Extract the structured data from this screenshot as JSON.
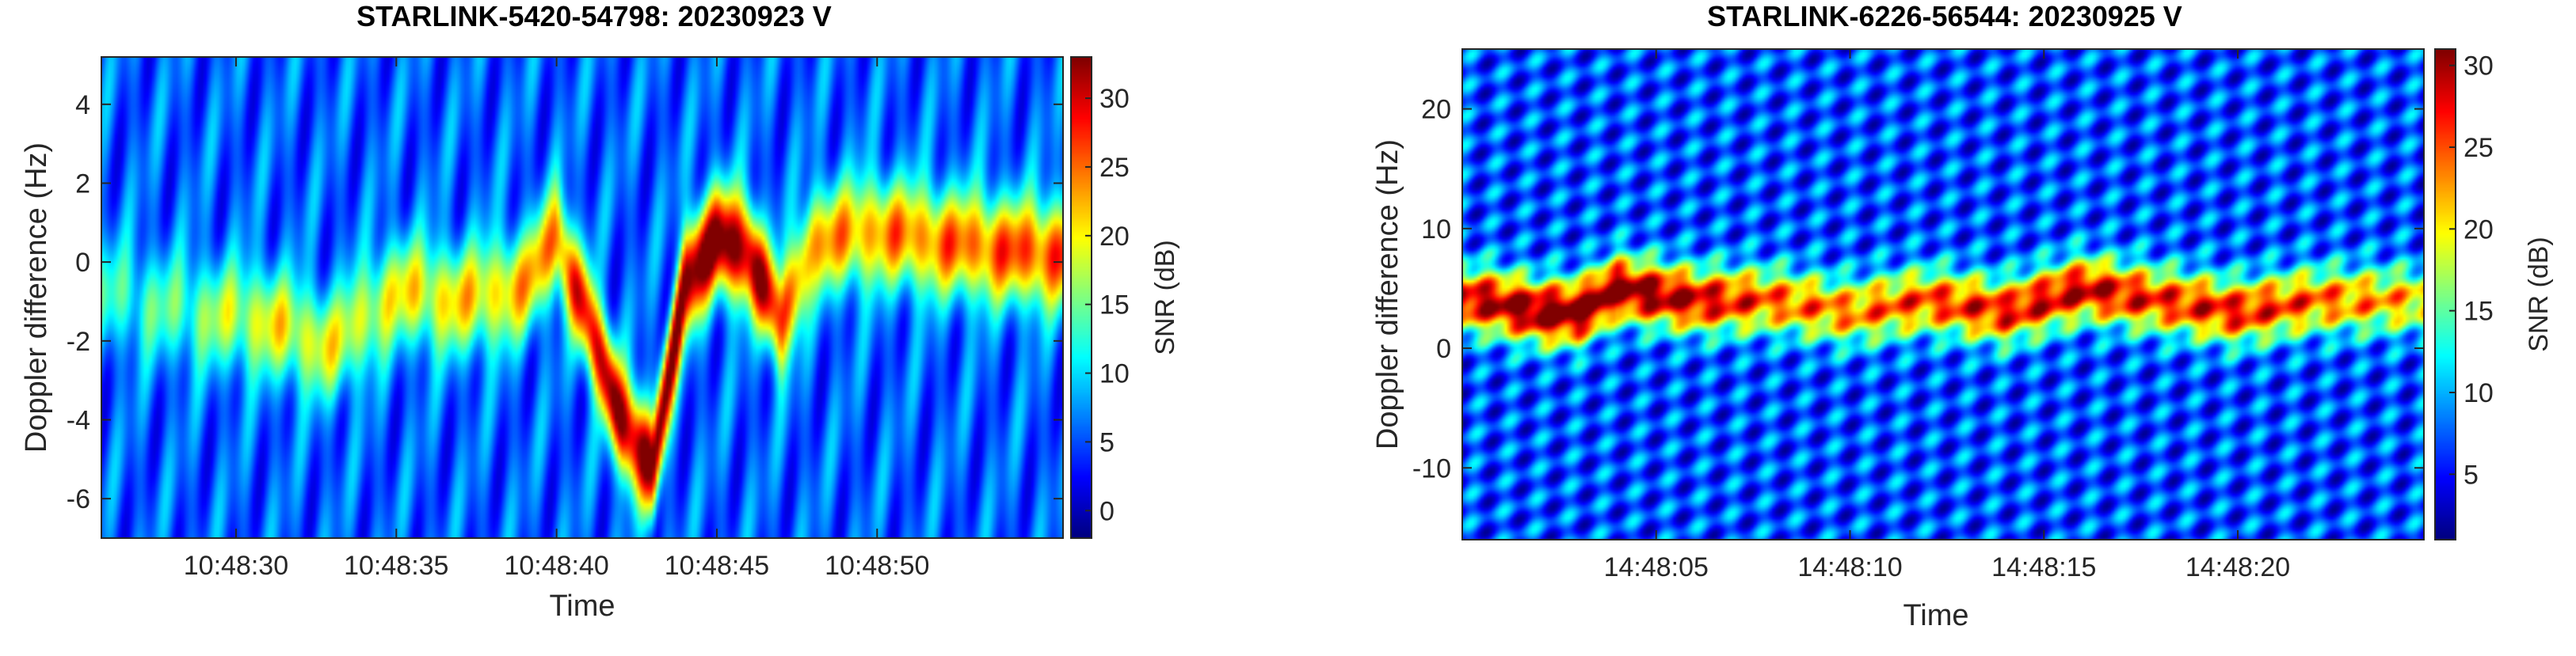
{
  "chart_data": [
    {
      "type": "heatmap",
      "title": "STARLINK-5420-54798: 20230923 V",
      "xlabel": "Time",
      "ylabel": "Doppler difference (Hz)",
      "xticks": [
        "10:48:30",
        "10:48:35",
        "10:48:40",
        "10:48:45",
        "10:48:50"
      ],
      "xlim": [
        "10:48:25.8",
        "10:48:55.8"
      ],
      "yticks": [
        4,
        2,
        0,
        -2,
        -4,
        -6
      ],
      "ylim": [
        -7,
        5.2
      ],
      "colorbar": {
        "label": "SNR (dB)",
        "ticks": [
          30,
          25,
          20,
          15,
          10,
          5,
          0
        ],
        "range": [
          -2,
          33
        ],
        "colormap": "jet"
      },
      "ridge": {
        "description": "Doppler track of peak SNR over time",
        "points": [
          {
            "t": "10:48:26",
            "doppler_hz": -0.8,
            "snr_db": 8
          },
          {
            "t": "10:48:28",
            "doppler_hz": -1.2,
            "snr_db": 9
          },
          {
            "t": "10:48:31",
            "doppler_hz": -1.5,
            "snr_db": 15
          },
          {
            "t": "10:48:33",
            "doppler_hz": -2.2,
            "snr_db": 14
          },
          {
            "t": "10:48:35",
            "doppler_hz": -0.7,
            "snr_db": 15
          },
          {
            "t": "10:48:37",
            "doppler_hz": -1.0,
            "snr_db": 16
          },
          {
            "t": "10:48:39",
            "doppler_hz": -0.6,
            "snr_db": 17
          },
          {
            "t": "10:48:40",
            "doppler_hz": 0.6,
            "snr_db": 20
          },
          {
            "t": "10:48:41",
            "doppler_hz": -1.5,
            "snr_db": 25
          },
          {
            "t": "10:48:42",
            "doppler_hz": -4.0,
            "snr_db": 29
          },
          {
            "t": "10:48:43",
            "doppler_hz": -5.2,
            "snr_db": 28
          },
          {
            "t": "10:48:44",
            "doppler_hz": -0.5,
            "snr_db": 30
          },
          {
            "t": "10:48:45",
            "doppler_hz": 0.6,
            "snr_db": 30
          },
          {
            "t": "10:48:46",
            "doppler_hz": 0.2,
            "snr_db": 29
          },
          {
            "t": "10:48:47",
            "doppler_hz": -1.5,
            "snr_db": 24
          },
          {
            "t": "10:48:48",
            "doppler_hz": 0.5,
            "snr_db": 18
          },
          {
            "t": "10:48:50",
            "doppler_hz": 0.8,
            "snr_db": 19
          },
          {
            "t": "10:48:52",
            "doppler_hz": 0.5,
            "snr_db": 20
          },
          {
            "t": "10:48:55",
            "doppler_hz": 0.2,
            "snr_db": 22
          }
        ]
      }
    },
    {
      "type": "heatmap",
      "title": "STARLINK-6226-56544: 20230925 V",
      "xlabel": "Time",
      "ylabel": "Doppler difference (Hz)",
      "xticks": [
        "14:48:05",
        "14:48:10",
        "14:48:15",
        "14:48:20"
      ],
      "xlim": [
        "14:48:00",
        "14:48:24.8"
      ],
      "yticks": [
        20,
        10,
        0,
        -10
      ],
      "ylim": [
        -16,
        25
      ],
      "colorbar": {
        "label": "SNR (dB)",
        "ticks": [
          30,
          25,
          20,
          15,
          10,
          5
        ],
        "range": [
          1,
          31
        ],
        "colormap": "jet"
      },
      "ridge": {
        "description": "Doppler track of peak SNR over time",
        "points": [
          {
            "t": "14:48:00.5",
            "doppler_hz": 4,
            "snr_db": 24
          },
          {
            "t": "14:48:02",
            "doppler_hz": 3,
            "snr_db": 27
          },
          {
            "t": "14:48:03",
            "doppler_hz": 3,
            "snr_db": 28
          },
          {
            "t": "14:48:04",
            "doppler_hz": 5,
            "snr_db": 27
          },
          {
            "t": "14:48:06",
            "doppler_hz": 4,
            "snr_db": 24
          },
          {
            "t": "14:48:08",
            "doppler_hz": 4,
            "snr_db": 19
          },
          {
            "t": "14:48:10",
            "doppler_hz": 3,
            "snr_db": 18
          },
          {
            "t": "14:48:12",
            "doppler_hz": 4,
            "snr_db": 20
          },
          {
            "t": "14:48:14",
            "doppler_hz": 3,
            "snr_db": 22
          },
          {
            "t": "14:48:16",
            "doppler_hz": 5,
            "snr_db": 24
          },
          {
            "t": "14:48:18",
            "doppler_hz": 4,
            "snr_db": 21
          },
          {
            "t": "14:48:20",
            "doppler_hz": 3,
            "snr_db": 22
          },
          {
            "t": "14:48:22",
            "doppler_hz": 4,
            "snr_db": 19
          },
          {
            "t": "14:48:24.5",
            "doppler_hz": 4,
            "snr_db": 16
          }
        ]
      }
    }
  ]
}
